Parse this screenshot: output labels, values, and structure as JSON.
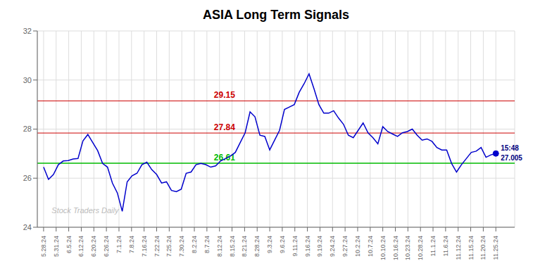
{
  "chart_data": {
    "type": "line",
    "title": "ASIA Long Term Signals",
    "color": "#0000cc",
    "grid": true,
    "xlim": [
      -0.5,
      37.5
    ],
    "ylim": [
      24,
      32
    ],
    "yticks": [
      24,
      26,
      28,
      30,
      32
    ],
    "xticks": [
      {
        "value": 0,
        "label": "5.28.24"
      },
      {
        "value": 1,
        "label": "5.31.24"
      },
      {
        "value": 2,
        "label": "6.5.24"
      },
      {
        "value": 3,
        "label": "6.12.24"
      },
      {
        "value": 4,
        "label": "6.20.24"
      },
      {
        "value": 5,
        "label": "6.26.24"
      },
      {
        "value": 6,
        "label": "7.1.24"
      },
      {
        "value": 7,
        "label": "7.8.24"
      },
      {
        "value": 8,
        "label": "7.16.24"
      },
      {
        "value": 9,
        "label": "7.22.24"
      },
      {
        "value": 10,
        "label": "7.25.24"
      },
      {
        "value": 11,
        "label": "7.30.24"
      },
      {
        "value": 12,
        "label": "8.2.24"
      },
      {
        "value": 13,
        "label": "8.7.24"
      },
      {
        "value": 14,
        "label": "8.12.24"
      },
      {
        "value": 15,
        "label": "8.15.24"
      },
      {
        "value": 16,
        "label": "8.21.24"
      },
      {
        "value": 17,
        "label": "8.28.24"
      },
      {
        "value": 18,
        "label": "9.3.24"
      },
      {
        "value": 19,
        "label": "9.6.24"
      },
      {
        "value": 20,
        "label": "9.11.24"
      },
      {
        "value": 21,
        "label": "9.16.24"
      },
      {
        "value": 22,
        "label": "9.19.24"
      },
      {
        "value": 23,
        "label": "9.24.24"
      },
      {
        "value": 24,
        "label": "9.27.24"
      },
      {
        "value": 25,
        "label": "10.2.24"
      },
      {
        "value": 26,
        "label": "10.7.24"
      },
      {
        "value": 27,
        "label": "10.10.24"
      },
      {
        "value": 28,
        "label": "10.16.24"
      },
      {
        "value": 29,
        "label": "10.23.24"
      },
      {
        "value": 30,
        "label": "10.28.24"
      },
      {
        "value": 31,
        "label": "11.1.24"
      },
      {
        "value": 32,
        "label": "11.6.24"
      },
      {
        "value": 33,
        "label": "11.12.24"
      },
      {
        "value": 34,
        "label": "11.15.24"
      },
      {
        "value": 35,
        "label": "11.20.24"
      },
      {
        "value": 36,
        "label": "11.25.24"
      }
    ],
    "x": [
      0,
      0.391304,
      0.782609,
      1.173913,
      1.565217,
      1.956522,
      2.347826,
      2.73913,
      3.130435,
      3.521739,
      3.913043,
      4.304348,
      4.695652,
      5.086957,
      5.478261,
      5.869565,
      6.26087,
      6.652174,
      7.043478,
      7.434783,
      7.826087,
      8.217391,
      8.608696,
      9,
      9.391304,
      9.782609,
      10.173913,
      10.565217,
      10.956522,
      11.347826,
      11.73913,
      12.130435,
      12.521739,
      12.913043,
      13.304348,
      13.695652,
      14.086957,
      14.478261,
      14.869565,
      15.26087,
      15.652174,
      16.043478,
      16.434783,
      16.826087,
      17.217391,
      17.608696,
      18,
      18.391304,
      18.782609,
      19.173913,
      19.565217,
      19.956522,
      20.347826,
      20.73913,
      21.130435,
      21.521739,
      21.913043,
      22.304348,
      22.695652,
      23.086957,
      23.478261,
      23.869565,
      24.26087,
      24.652174,
      25.043478,
      25.434783,
      25.826087,
      26.217391,
      26.608696,
      27,
      27.391304,
      27.782609,
      28.173913,
      28.565217,
      28.956522,
      29.347826,
      29.73913,
      30.130435,
      30.521739,
      30.913043,
      31.304348,
      31.695652,
      32.086957,
      32.478261,
      32.869565,
      33.26087,
      33.652174,
      34.043478,
      34.434783,
      34.826087,
      35.217391,
      35.608696,
      36
    ],
    "values": [
      26.45,
      25.95,
      26.15,
      26.55,
      26.7,
      26.72,
      26.78,
      26.8,
      27.52,
      27.78,
      27.45,
      27.12,
      26.6,
      26.45,
      25.8,
      25.4,
      24.65,
      25.85,
      26.1,
      26.2,
      26.55,
      26.65,
      26.35,
      26.15,
      25.8,
      25.85,
      25.5,
      25.45,
      25.55,
      26.2,
      26.25,
      26.55,
      26.6,
      26.55,
      26.45,
      26.5,
      26.7,
      26.8,
      26.9,
      27.05,
      27.45,
      27.85,
      28.7,
      28.5,
      27.75,
      27.7,
      27.15,
      27.55,
      27.95,
      28.8,
      28.9,
      29.0,
      29.5,
      29.85,
      30.25,
      29.65,
      29.0,
      28.65,
      28.65,
      28.75,
      28.45,
      28.2,
      27.75,
      27.65,
      27.95,
      28.25,
      27.85,
      27.65,
      27.4,
      28.1,
      27.9,
      27.8,
      27.7,
      27.85,
      27.9,
      28.0,
      27.75,
      27.55,
      27.6,
      27.5,
      27.25,
      27.15,
      27.15,
      26.6,
      26.25,
      26.55,
      26.8,
      27.05,
      27.1,
      27.25,
      26.85,
      26.95,
      27.005
    ],
    "reference_lines": [
      {
        "value": 29.15,
        "label": "29.15",
        "color": "#cc0000"
      },
      {
        "value": 27.84,
        "label": "27.84",
        "color": "#cc0000"
      },
      {
        "value": 26.61,
        "label": "26.61",
        "color": "#00bb00"
      }
    ],
    "annotations": [
      {
        "text": "15:48",
        "color": "#000080"
      },
      {
        "text": "27.005",
        "color": "#000080"
      }
    ],
    "watermark": "Stock Traders Daily"
  }
}
